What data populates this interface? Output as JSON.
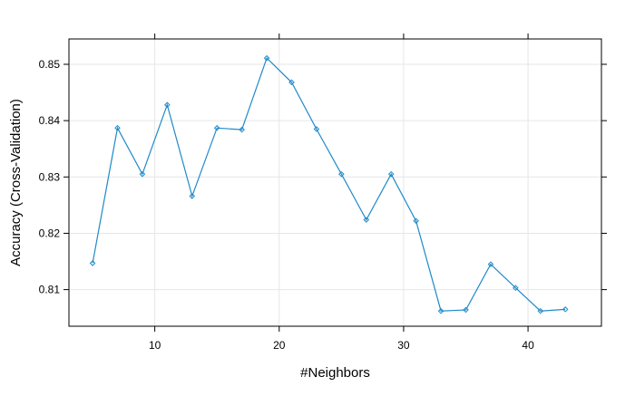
{
  "chart_data": {
    "type": "line",
    "title": "",
    "xlabel": "#Neighbors",
    "ylabel": "Accuracy (Cross-Validation)",
    "xlim": [
      3.1,
      45.9
    ],
    "ylim": [
      0.8035,
      0.8545
    ],
    "x_ticks": [
      10,
      20,
      30,
      40
    ],
    "y_ticks": [
      0.81,
      0.82,
      0.83,
      0.84,
      0.85
    ],
    "x_tick_labels": [
      "10",
      "20",
      "30",
      "40"
    ],
    "y_tick_labels": [
      "0.81",
      "0.82",
      "0.83",
      "0.84",
      "0.85"
    ],
    "grid": true,
    "series": [
      {
        "color": "#1f8ac9",
        "x": [
          5,
          7,
          9,
          11,
          13,
          15,
          17,
          19,
          21,
          23,
          25,
          27,
          29,
          31,
          33,
          35,
          37,
          39,
          41,
          43
        ],
        "y": [
          0.8147,
          0.8387,
          0.8305,
          0.8428,
          0.8266,
          0.8387,
          0.8384,
          0.8511,
          0.8468,
          0.8385,
          0.8305,
          0.8224,
          0.8305,
          0.8222,
          0.8062,
          0.8064,
          0.8145,
          0.8103,
          0.8062,
          0.8065
        ]
      }
    ]
  }
}
